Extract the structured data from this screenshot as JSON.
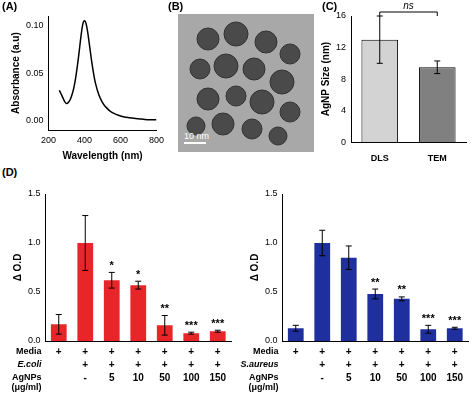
{
  "chart_data": [
    {
      "panel": "(A)",
      "type": "line",
      "x": [
        260,
        270,
        280,
        290,
        300,
        310,
        320,
        330,
        340,
        350,
        360,
        370,
        380,
        390,
        400,
        410,
        420,
        430,
        440,
        450,
        460,
        480,
        500,
        520,
        550,
        600,
        650,
        700,
        750,
        800
      ],
      "values": [
        0.032,
        0.028,
        0.024,
        0.02,
        0.018,
        0.019,
        0.022,
        0.027,
        0.034,
        0.044,
        0.057,
        0.072,
        0.088,
        0.101,
        0.105,
        0.101,
        0.09,
        0.076,
        0.062,
        0.05,
        0.04,
        0.027,
        0.019,
        0.014,
        0.009,
        0.005,
        0.003,
        0.002,
        0.001,
        0.001
      ],
      "color": "#000000",
      "xlabel": "Wavelength (nm)",
      "ylabel": "Absorbance (a.u)",
      "xlim": [
        200,
        800
      ],
      "xticks": [
        200,
        400,
        600,
        800
      ],
      "ylim": [
        -0.01,
        0.11
      ],
      "yticks": [
        {
          "value": 0,
          "label": "0.00"
        },
        {
          "value": 0.05,
          "label": "0.05"
        },
        {
          "value": 0.1,
          "label": "0.10"
        }
      ],
      "grid": false
    },
    {
      "panel": "(B)",
      "type": "image",
      "scale_bar": "10 nm"
    },
    {
      "panel": "(C)",
      "type": "bar",
      "categories": [
        "DLS",
        "TEM"
      ],
      "values": [
        13,
        9.5
      ],
      "errors": [
        3,
        0.8
      ],
      "colors": [
        "#d3d3d3",
        "#808080"
      ],
      "ylabel": "AgNP Size (nm)",
      "ylim": [
        0,
        16
      ],
      "yticks": [
        0,
        4,
        8,
        12,
        16
      ],
      "annotation": "ns",
      "grid": false
    },
    {
      "panel": "(D)",
      "type": "bar",
      "values": [
        0.17,
        1.0,
        0.62,
        0.57,
        0.16,
        0.08,
        0.1
      ],
      "errors": [
        0.1,
        0.28,
        0.08,
        0.04,
        0.1,
        0.01,
        0.01
      ],
      "annotations": [
        null,
        null,
        "*",
        "*",
        "**",
        "***",
        "***"
      ],
      "color": "#e8262a",
      "ylabel": "Δ O.D",
      "ylim": [
        0,
        1.5
      ],
      "yticks": [
        {
          "value": 0,
          "label": "0.0"
        },
        {
          "value": 0.5,
          "label": "0.5"
        },
        {
          "value": 1,
          "label": "1.0"
        },
        {
          "value": 1.5,
          "label": "1.5"
        }
      ],
      "x_table": [
        {
          "label": [
            "Media"
          ],
          "cells": [
            "+",
            "+",
            "+",
            "+",
            "+",
            "+",
            "+"
          ]
        },
        {
          "label": [
            "E.coli"
          ],
          "cells": [
            null,
            "+",
            "+",
            "+",
            "+",
            "+",
            "+"
          ]
        },
        {
          "label": [
            "AgNPs",
            "(μg/ml)"
          ],
          "cells": [
            null,
            "-",
            "5",
            "10",
            "50",
            "100",
            "150"
          ]
        }
      ],
      "grid": false
    },
    {
      "type": "bar",
      "values": [
        0.13,
        1.0,
        0.85,
        0.48,
        0.43,
        0.12,
        0.13
      ],
      "errors": [
        0.03,
        0.13,
        0.12,
        0.05,
        0.02,
        0.04,
        0.01
      ],
      "annotations": [
        null,
        null,
        null,
        "**",
        "**",
        "***",
        "***"
      ],
      "color": "#1f2f9e",
      "ylabel": "Δ O.D",
      "ylim": [
        0,
        1.5
      ],
      "yticks": [
        {
          "value": 0,
          "label": "0.0"
        },
        {
          "value": 0.5,
          "label": "0.5"
        },
        {
          "value": 1,
          "label": "1.0"
        },
        {
          "value": 1.5,
          "label": "1.5"
        }
      ],
      "x_table": [
        {
          "label": [
            "Media"
          ],
          "cells": [
            "+",
            "+",
            "+",
            "+",
            "+",
            "+",
            "+"
          ]
        },
        {
          "label": [
            "S.aureus"
          ],
          "cells": [
            null,
            "+",
            "+",
            "+",
            "+",
            "+",
            "+"
          ]
        },
        {
          "label": [
            "AgNPs",
            "(μg/ml)"
          ],
          "cells": [
            null,
            "-",
            "5",
            "10",
            "50",
            "100",
            "150"
          ]
        }
      ],
      "grid": false
    }
  ]
}
